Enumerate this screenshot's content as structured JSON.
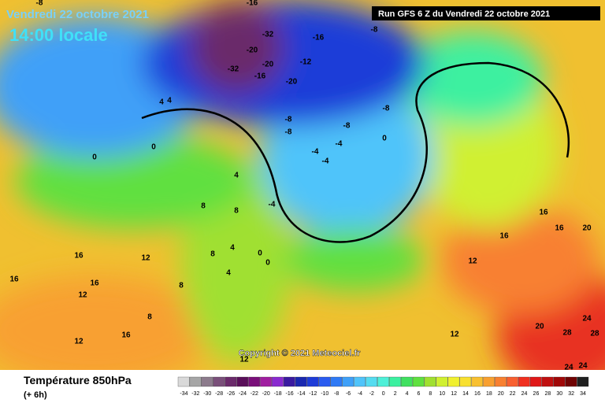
{
  "header": {
    "date": "Vendredi 22 octobre 2021",
    "time": "14:00 locale",
    "run": "Run GFS 6 Z du Vendredi 22 octobre 2021"
  },
  "copyright": "Copyright © 2021 Meteociel.fr",
  "footer": {
    "title": "Température 850hPa",
    "step": "(+ 6h)"
  },
  "contour_labels": [
    "-32",
    "-20",
    "-32",
    "-20",
    "-16",
    "-16",
    "-12",
    "-20",
    "-8",
    "-8",
    "-8",
    "-8",
    "-4",
    "-4",
    "-4",
    "-8",
    "0",
    "0",
    "0",
    "4",
    "4",
    "4",
    "8",
    "4",
    "8",
    "8",
    "12",
    "12",
    "12",
    "16",
    "16",
    "16",
    "16",
    "16",
    "20",
    "20",
    "24",
    "28",
    "28",
    "24",
    "12",
    "8",
    "8",
    "4",
    "0",
    "0",
    "12",
    "16",
    "-8",
    "-16",
    "-4",
    "16",
    "12",
    "24"
  ],
  "colorbar": {
    "ticks": [
      -34,
      -32,
      -30,
      -28,
      -26,
      -24,
      -22,
      -20,
      -18,
      -16,
      -14,
      -12,
      -10,
      -8,
      -6,
      -4,
      -2,
      0,
      2,
      4,
      6,
      8,
      10,
      12,
      14,
      16,
      18,
      20,
      22,
      24,
      26,
      28,
      30,
      32,
      34
    ],
    "colors": [
      "#d9d9d9",
      "#a6a6a6",
      "#8c7b8c",
      "#7a4f7a",
      "#6b2a6b",
      "#5a0f5a",
      "#7a0f7a",
      "#a01ea0",
      "#8a2ad0",
      "#3a1aa0",
      "#1a28b0",
      "#1e3cd8",
      "#2a5cf0",
      "#2f7af5",
      "#3fa0f8",
      "#50c4fa",
      "#55dcf0",
      "#4ef0d8",
      "#3cf0a0",
      "#40e060",
      "#60e040",
      "#a0e030",
      "#d0f030",
      "#f0f030",
      "#f8e030",
      "#f8c030",
      "#f8a030",
      "#f88030",
      "#f86030",
      "#f03020",
      "#e01818",
      "#c01010",
      "#a00808",
      "#700404",
      "#202020"
    ]
  }
}
